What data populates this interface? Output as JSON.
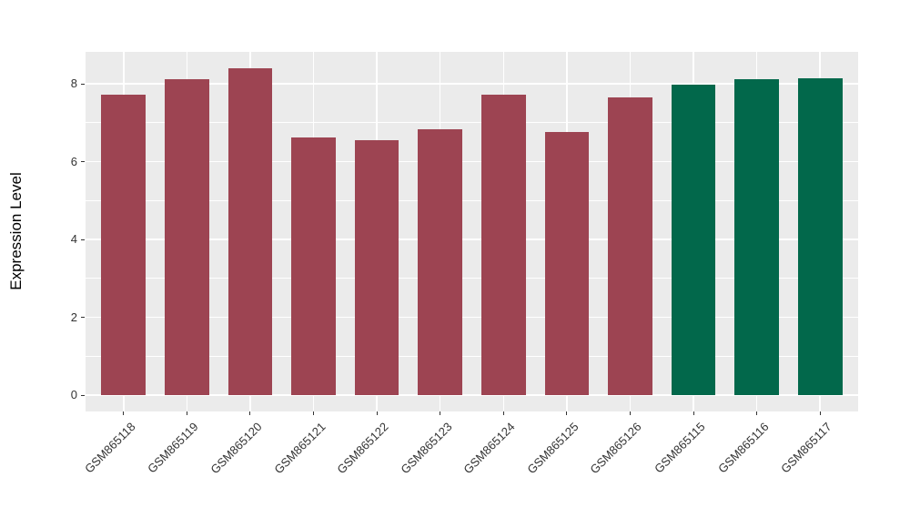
{
  "chart_data": {
    "type": "bar",
    "title": "",
    "xlabel": "",
    "ylabel": "Expression Level",
    "categories": [
      "GSM865118",
      "GSM865119",
      "GSM865120",
      "GSM865121",
      "GSM865122",
      "GSM865123",
      "GSM865124",
      "GSM865125",
      "GSM865126",
      "GSM865115",
      "GSM865116",
      "GSM865117"
    ],
    "values": [
      7.72,
      8.11,
      8.41,
      6.63,
      6.54,
      6.84,
      7.72,
      6.75,
      7.66,
      7.98,
      8.11,
      8.13
    ],
    "bar_colors": [
      "#9D4452",
      "#9D4452",
      "#9D4452",
      "#9D4452",
      "#9D4452",
      "#9D4452",
      "#9D4452",
      "#9D4452",
      "#9D4452",
      "#02684B",
      "#02684B",
      "#02684B"
    ],
    "group_colors": {
      "red_group": "#9D4452",
      "green_group": "#02684B"
    },
    "yticks": [
      0,
      2,
      4,
      6,
      8
    ],
    "yticks_minor": [
      1,
      3,
      5,
      7
    ],
    "ylim": [
      -0.42,
      8.82
    ],
    "bar_width_fraction": 0.7,
    "grid": true,
    "legend": false,
    "panel_background": "#EBEBEB",
    "grid_color": "#FFFFFF",
    "axis_text_color": "#333333",
    "tick_color": "#333333",
    "figure_background": "#FFFFFF"
  }
}
